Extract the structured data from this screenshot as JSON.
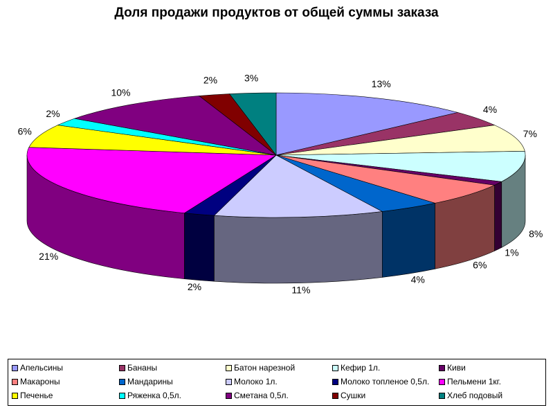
{
  "chart_data": {
    "type": "pie",
    "title": "Доля продажи продуктов от общей суммы заказа",
    "legend_position": "bottom",
    "series": [
      {
        "name": "Апельсины",
        "percent": 13,
        "label": "13%",
        "color": "#9999FF"
      },
      {
        "name": "Бананы",
        "percent": 4,
        "label": "4%",
        "color": "#993366"
      },
      {
        "name": "Батон нарезной",
        "percent": 7,
        "label": "7%",
        "color": "#FFFFCC"
      },
      {
        "name": "Кефир 1л.",
        "percent": 8,
        "label": "8%",
        "color": "#CCFFFF"
      },
      {
        "name": "Киви",
        "percent": 1,
        "label": "1%",
        "color": "#660066"
      },
      {
        "name": "Макароны",
        "percent": 6,
        "label": "6%",
        "color": "#FF8080"
      },
      {
        "name": "Мандарины",
        "percent": 4,
        "label": "4%",
        "color": "#0066CC"
      },
      {
        "name": "Молоко 1л.",
        "percent": 11,
        "label": "11%",
        "color": "#CCCCFF"
      },
      {
        "name": "Молоко топленое 0,5л.",
        "percent": 2,
        "label": "2%",
        "color": "#000080"
      },
      {
        "name": "Пельмени 1кг.",
        "percent": 21,
        "label": "21%",
        "color": "#FF00FF"
      },
      {
        "name": "Печенье",
        "percent": 6,
        "label": "6%",
        "color": "#FFFF00"
      },
      {
        "name": "Ряженка 0,5л.",
        "percent": 2,
        "label": "2%",
        "color": "#00FFFF"
      },
      {
        "name": "Сметана 0,5л.",
        "percent": 10,
        "label": "10%",
        "color": "#800080"
      },
      {
        "name": "Сушки",
        "percent": 2,
        "label": "2%",
        "color": "#800000"
      },
      {
        "name": "Хлеб подовый",
        "percent": 3,
        "label": "3%",
        "color": "#008080"
      }
    ]
  }
}
